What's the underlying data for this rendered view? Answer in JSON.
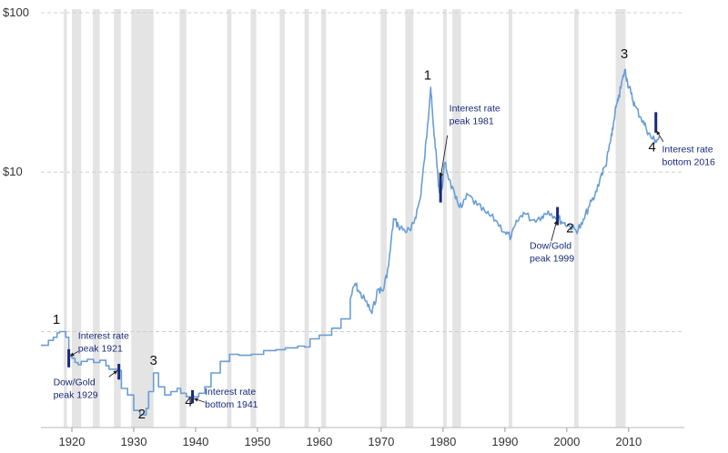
{
  "chart_data": {
    "type": "line",
    "title": "",
    "xlabel": "",
    "ylabel": "",
    "yscale": "log",
    "xlim": [
      1915,
      2019
    ],
    "ylim": [
      0.25,
      100
    ],
    "grid": "horizontal-dashed",
    "y_ticks": [
      {
        "value": 100,
        "label": "$100"
      },
      {
        "value": 10,
        "label": "$10"
      },
      {
        "value": 1,
        "label": ""
      }
    ],
    "x_ticks": [
      {
        "value": 1920,
        "label": "1920"
      },
      {
        "value": 1930,
        "label": "1930"
      },
      {
        "value": 1940,
        "label": "1940"
      },
      {
        "value": 1950,
        "label": "1950"
      },
      {
        "value": 1960,
        "label": "1960"
      },
      {
        "value": 1970,
        "label": "1970"
      },
      {
        "value": 1980,
        "label": "1980"
      },
      {
        "value": 1990,
        "label": "1990"
      },
      {
        "value": 2000,
        "label": "2000"
      },
      {
        "value": 2010,
        "label": "2010"
      }
    ],
    "recessions": [
      [
        1918.7,
        1919.2
      ],
      [
        1920.0,
        1921.5
      ],
      [
        1923.4,
        1924.5
      ],
      [
        1926.8,
        1927.9
      ],
      [
        1929.6,
        1933.2
      ],
      [
        1937.4,
        1938.5
      ],
      [
        1945.1,
        1945.8
      ],
      [
        1948.9,
        1949.8
      ],
      [
        1953.6,
        1954.4
      ],
      [
        1957.6,
        1958.3
      ],
      [
        1960.3,
        1961.1
      ],
      [
        1969.9,
        1970.9
      ],
      [
        1973.9,
        1975.2
      ],
      [
        1980.0,
        1980.6
      ],
      [
        1981.5,
        1982.9
      ],
      [
        1990.6,
        1991.2
      ],
      [
        2001.2,
        2001.9
      ],
      [
        2007.9,
        2009.5
      ]
    ],
    "series": [
      {
        "color": "#6a9ed4",
        "points": [
          [
            1915.0,
            0.82
          ],
          [
            1916.0,
            0.82
          ],
          [
            1916.2,
            0.88
          ],
          [
            1917.0,
            0.92
          ],
          [
            1917.6,
            0.98
          ],
          [
            1918.0,
            1.0
          ],
          [
            1918.8,
            1.0
          ],
          [
            1919.0,
            0.92
          ],
          [
            1919.5,
            0.72
          ],
          [
            1920.0,
            0.68
          ],
          [
            1920.5,
            0.64
          ],
          [
            1921.0,
            0.62
          ],
          [
            1921.5,
            0.65
          ],
          [
            1922.5,
            0.67
          ],
          [
            1923.5,
            0.64
          ],
          [
            1924.5,
            0.66
          ],
          [
            1925.5,
            0.61
          ],
          [
            1926.0,
            0.58
          ],
          [
            1926.8,
            0.58
          ],
          [
            1927.6,
            0.57
          ],
          [
            1928.0,
            0.44
          ],
          [
            1929.0,
            0.4
          ],
          [
            1929.6,
            0.4
          ],
          [
            1930.0,
            0.32
          ],
          [
            1931.0,
            0.3
          ],
          [
            1931.5,
            0.3
          ],
          [
            1932.0,
            0.33
          ],
          [
            1932.4,
            0.42
          ],
          [
            1933.2,
            0.55
          ],
          [
            1934.0,
            0.45
          ],
          [
            1935.0,
            0.4
          ],
          [
            1936.0,
            0.42
          ],
          [
            1937.0,
            0.44
          ],
          [
            1937.6,
            0.41
          ],
          [
            1938.5,
            0.39
          ],
          [
            1939.5,
            0.39
          ],
          [
            1940.5,
            0.41
          ],
          [
            1941.5,
            0.45
          ],
          [
            1942.5,
            0.55
          ],
          [
            1944.0,
            0.65
          ],
          [
            1945.5,
            0.72
          ],
          [
            1947.0,
            0.71
          ],
          [
            1949.0,
            0.72
          ],
          [
            1951.0,
            0.76
          ],
          [
            1953.0,
            0.77
          ],
          [
            1954.5,
            0.79
          ],
          [
            1956.5,
            0.81
          ],
          [
            1957.6,
            0.8
          ],
          [
            1958.5,
            0.9
          ],
          [
            1960.0,
            0.95
          ],
          [
            1962.0,
            1.05
          ],
          [
            1963.5,
            1.2
          ],
          [
            1965.0,
            1.6
          ],
          [
            1965.8,
            2.0
          ],
          [
            1966.5,
            1.75
          ],
          [
            1967.5,
            1.55
          ],
          [
            1968.5,
            1.3
          ],
          [
            1969.5,
            1.85
          ],
          [
            1970.3,
            1.8
          ],
          [
            1971.2,
            2.6
          ],
          [
            1972.0,
            5.1
          ],
          [
            1972.8,
            4.6
          ],
          [
            1973.8,
            4.3
          ],
          [
            1974.8,
            4.3
          ],
          [
            1975.5,
            5.2
          ],
          [
            1976.3,
            6.8
          ],
          [
            1977.0,
            12.0
          ],
          [
            1977.5,
            20.0
          ],
          [
            1978.0,
            34.0
          ],
          [
            1978.4,
            20.0
          ],
          [
            1978.8,
            14.0
          ],
          [
            1979.2,
            9.0
          ],
          [
            1979.6,
            6.8
          ],
          [
            1980.3,
            11.5
          ],
          [
            1981.0,
            9.0
          ],
          [
            1982.0,
            6.8
          ],
          [
            1983.0,
            6.0
          ],
          [
            1984.0,
            7.2
          ],
          [
            1985.5,
            6.2
          ],
          [
            1987.0,
            5.5
          ],
          [
            1988.5,
            5.0
          ],
          [
            1990.0,
            4.2
          ],
          [
            1991.0,
            3.9
          ],
          [
            1992.0,
            4.9
          ],
          [
            1993.0,
            5.6
          ],
          [
            1994.5,
            5.0
          ],
          [
            1996.0,
            5.3
          ],
          [
            1997.0,
            5.7
          ],
          [
            1998.5,
            5.2
          ],
          [
            1999.5,
            4.8
          ],
          [
            2000.5,
            4.6
          ],
          [
            2001.5,
            4.3
          ],
          [
            2002.5,
            4.7
          ],
          [
            2003.5,
            6.0
          ],
          [
            2004.5,
            7.0
          ],
          [
            2005.5,
            9.5
          ],
          [
            2006.3,
            11.0
          ],
          [
            2006.8,
            14.0
          ],
          [
            2007.3,
            17.0
          ],
          [
            2007.8,
            24.0
          ],
          [
            2008.3,
            28.0
          ],
          [
            2008.8,
            35.0
          ],
          [
            2009.4,
            44.0
          ],
          [
            2009.8,
            37.0
          ],
          [
            2010.4,
            31.0
          ],
          [
            2011.0,
            26.0
          ],
          [
            2012.0,
            22.0
          ],
          [
            2012.8,
            19.0
          ],
          [
            2013.6,
            16.5
          ],
          [
            2014.4,
            15.8
          ],
          [
            2015.0,
            16.5
          ]
        ]
      }
    ],
    "event_markers": [
      {
        "x": 1919.5,
        "y_center": 0.68,
        "span": 1.14
      },
      {
        "x": 1927.6,
        "y_center": 0.56,
        "span": 1.12
      },
      {
        "x": 1939.5,
        "y_center": 0.39,
        "span": 1.1
      },
      {
        "x": 1979.6,
        "y_center": 8.0,
        "span": 1.24
      },
      {
        "x": 1998.5,
        "y_center": 5.3,
        "span": 1.14
      },
      {
        "x": 2014.4,
        "y_center": 20.5,
        "span": 1.16
      }
    ],
    "numbers": [
      {
        "text": "1",
        "x": 1917.5,
        "y": 1.12
      },
      {
        "text": "2",
        "x": 1931.3,
        "y": 0.285
      },
      {
        "text": "3",
        "x": 1933.2,
        "y": 0.62
      },
      {
        "text": "4",
        "x": 1938.9,
        "y": 0.34
      },
      {
        "text": "1",
        "x": 1977.5,
        "y": 38.0
      },
      {
        "text": "2",
        "x": 2000.5,
        "y": 4.2
      },
      {
        "text": "3",
        "x": 2009.3,
        "y": 52.0
      },
      {
        "text": "4",
        "x": 2013.8,
        "y": 13.5
      }
    ],
    "annotations": [
      {
        "lines": [
          "Interest rate",
          "peak 1921"
        ],
        "x": 1921.0,
        "y": 0.9
      },
      {
        "lines": [
          "Dow/Gold",
          "peak 1929"
        ],
        "x": 1917.0,
        "y": 0.46
      },
      {
        "lines": [
          "Interest rate",
          "bottom 1941"
        ],
        "x": 1941.5,
        "y": 0.4
      },
      {
        "lines": [
          "Interest rate",
          "peak 1981"
        ],
        "x": 1981.0,
        "y": 24.0
      },
      {
        "lines": [
          "Dow/Gold",
          "peak 1999"
        ],
        "x": 1994.0,
        "y": 3.3
      },
      {
        "lines": [
          "Interest rate",
          "bottom 2016"
        ],
        "x": 2015.4,
        "y": 13.3
      }
    ],
    "arrows": [
      {
        "from": [
          1921.0,
          0.75
        ],
        "to": [
          1919.7,
          0.7
        ]
      },
      {
        "from": [
          1926.0,
          0.52
        ],
        "to": [
          1927.4,
          0.57
        ]
      },
      {
        "from": [
          1941.5,
          0.36
        ],
        "to": [
          1939.7,
          0.38
        ]
      },
      {
        "from": [
          1980.7,
          17.0
        ],
        "to": [
          1979.6,
          9.2
        ]
      },
      {
        "from": [
          1997.5,
          3.7
        ],
        "to": [
          1998.4,
          5.0
        ]
      },
      {
        "from": [
          2015.6,
          15.5
        ],
        "to": [
          2014.5,
          18.2
        ]
      }
    ]
  }
}
